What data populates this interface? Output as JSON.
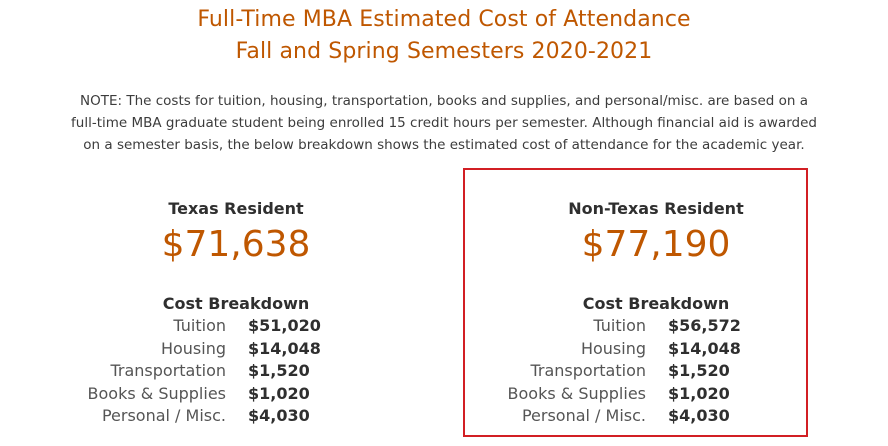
{
  "header": {
    "title_line1": "Full-Time MBA Estimated Cost of Attendance",
    "title_line2": "Fall and Spring Semesters 2020-2021"
  },
  "note": {
    "line1": "NOTE: The costs for tuition, housing, transportation, books and supplies, and personal/misc. are based on a",
    "line2": "full-time MBA graduate student being enrolled 15 credit hours per semester. Although financial aid is awarded",
    "line3": "on a semester basis, the below breakdown shows the estimated cost of attendance for the academic year."
  },
  "texas": {
    "resident_label": "Texas Resident",
    "total": "$71,638",
    "breakdown_title": "Cost Breakdown",
    "items": [
      {
        "label": "Tuition",
        "value": "$51,020"
      },
      {
        "label": "Housing",
        "value": "$14,048"
      },
      {
        "label": "Transportation",
        "value": "$1,520"
      },
      {
        "label": "Books & Supplies",
        "value": "$1,020"
      },
      {
        "label": "Personal / Misc.",
        "value": "$4,030"
      }
    ]
  },
  "non_texas": {
    "resident_label": "Non-Texas Resident",
    "total": "$77,190",
    "breakdown_title": "Cost Breakdown",
    "items": [
      {
        "label": "Tuition",
        "value": "$56,572"
      },
      {
        "label": "Housing",
        "value": "$14,048"
      },
      {
        "label": "Transportation",
        "value": "$1,520"
      },
      {
        "label": "Books & Supplies",
        "value": "$1,020"
      },
      {
        "label": "Personal / Misc.",
        "value": "$4,030"
      }
    ]
  },
  "colors": {
    "accent": "#bf5700",
    "highlight_border": "#d21f24",
    "text": "#3c3c3c"
  }
}
